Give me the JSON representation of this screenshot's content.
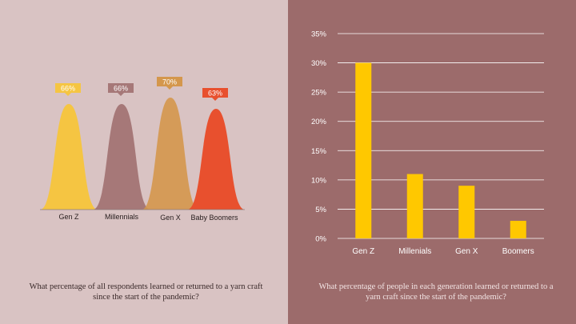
{
  "left_caption": "What percentage of all respondents learned or returned to a yarn craft since the start of the pandemic?",
  "right_caption": "What percentage of people in each generation learned or returned to a yarn craft since the start of the pandemic?",
  "colors": {
    "left_bg": "#d9c3c3",
    "right_bg": "#9c6b6b",
    "gen_z": "#f5c542",
    "millennials": "#a67878",
    "gen_x": "#d4974c",
    "boomers": "#e8502e",
    "bar": "#ffc800",
    "grid": "#ffffff"
  },
  "chart_data": [
    {
      "type": "area",
      "categories": [
        "Gen Z",
        "Millennials",
        "Gen X",
        "Baby Boomers"
      ],
      "values": [
        66,
        66,
        70,
        63
      ],
      "labels": [
        "66%",
        "66%",
        "70%",
        "63%"
      ],
      "grid": false
    },
    {
      "type": "bar",
      "categories": [
        "Gen Z",
        "Millenials",
        "Gen X",
        "Boomers"
      ],
      "values": [
        30,
        11,
        9,
        3
      ],
      "ylim": [
        0,
        35
      ],
      "yticks": [
        "0%",
        "5%",
        "10%",
        "15%",
        "20%",
        "25%",
        "30%",
        "35%"
      ],
      "grid": true
    }
  ]
}
